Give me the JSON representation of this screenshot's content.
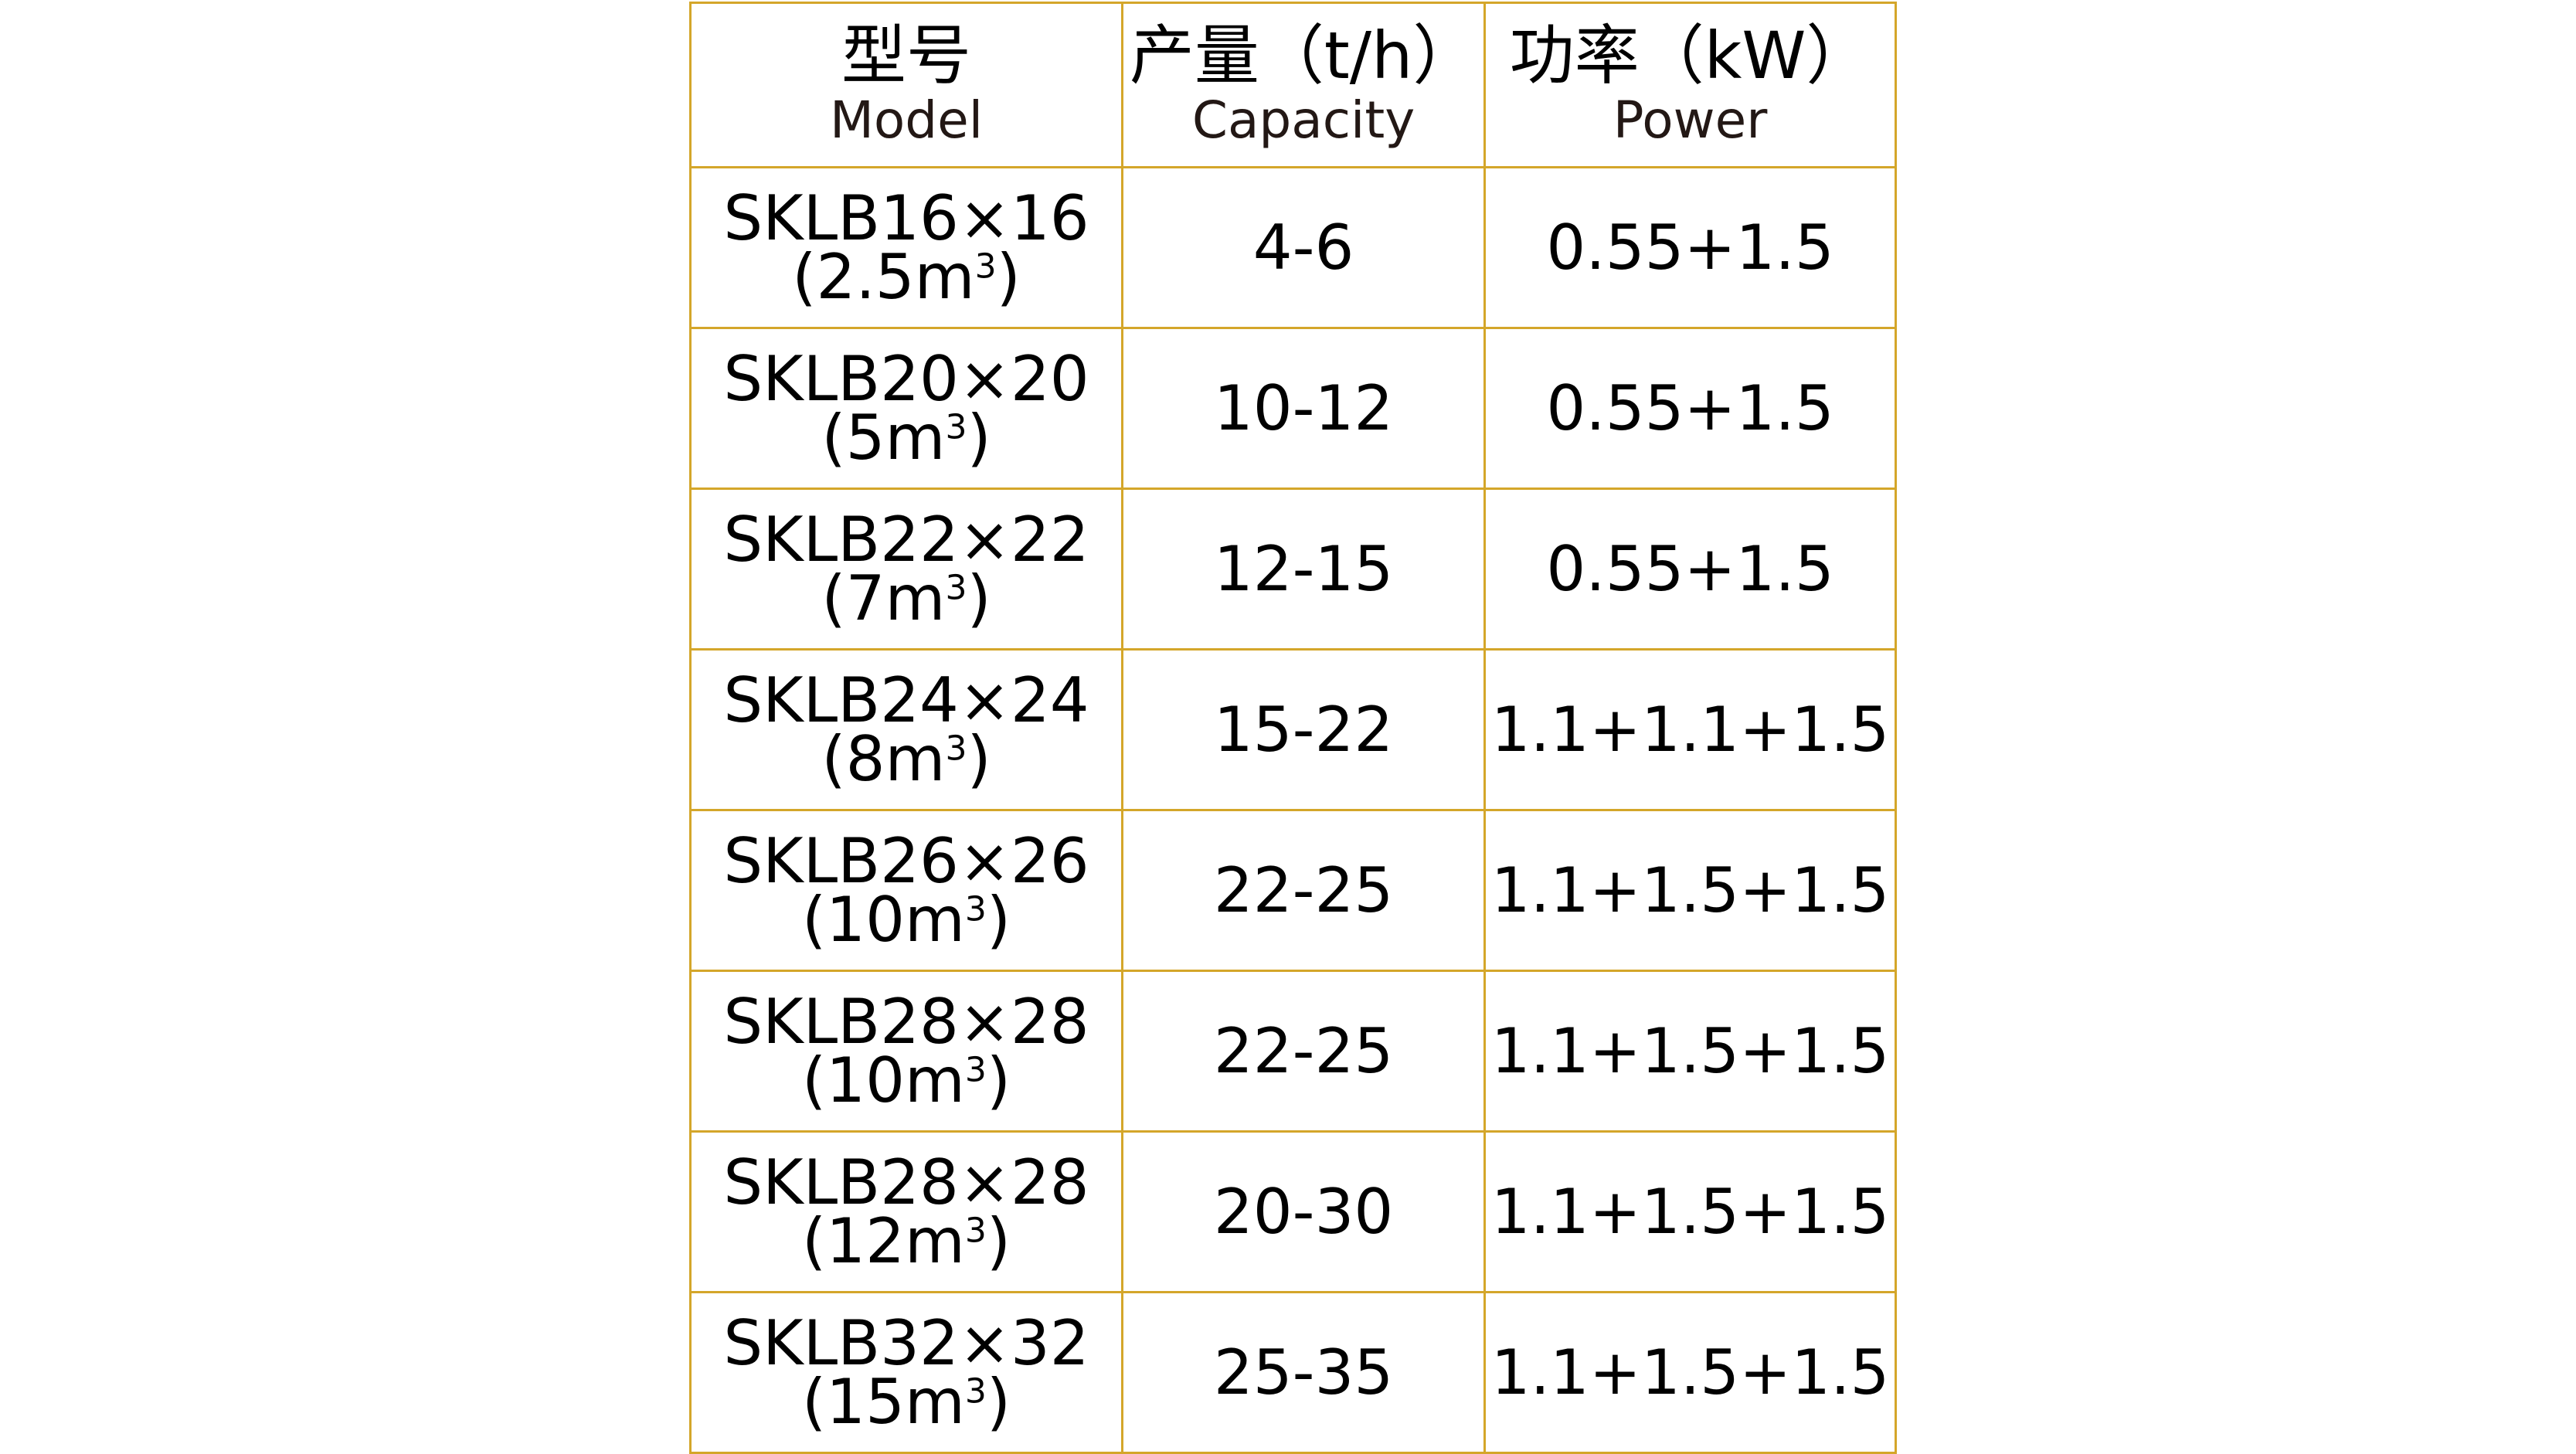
{
  "header": [
    {
      "zh": "型号",
      "en": "Model"
    },
    {
      "zh": "产量（t/h）",
      "en": "Capacity"
    },
    {
      "zh": "功率（kW）",
      "en": "Power"
    }
  ],
  "rows": [
    {
      "model": "SKLB16×16",
      "volume": "(2.5m",
      "capacity": "4-6",
      "power": "0.55+1.5"
    },
    {
      "model": "SKLB20×20",
      "volume": "(5m",
      "capacity": "10-12",
      "power": "0.55+1.5"
    },
    {
      "model": "SKLB22×22",
      "volume": "(7m",
      "capacity": "12-15",
      "power": "0.55+1.5"
    },
    {
      "model": "SKLB24×24",
      "volume": "(8m",
      "capacity": "15-22",
      "power": "1.1+1.1+1.5"
    },
    {
      "model": "SKLB26×26",
      "volume": "(10m",
      "capacity": "22-25",
      "power": "1.1+1.5+1.5"
    },
    {
      "model": "SKLB28×28",
      "volume": "(10m",
      "capacity": "22-25",
      "power": "1.1+1.5+1.5"
    },
    {
      "model": "SKLB28×28",
      "volume": "(12m",
      "capacity": "20-30",
      "power": "1.1+1.5+1.5"
    },
    {
      "model": "SKLB32×32",
      "volume": "(15m",
      "capacity": "25-35",
      "power": "1.1+1.5+1.5"
    }
  ],
  "unit_sup": "3",
  "unit_close": ")",
  "colors": {
    "border": "#d4a62a",
    "text": "#000000",
    "header_en": "#231815"
  }
}
